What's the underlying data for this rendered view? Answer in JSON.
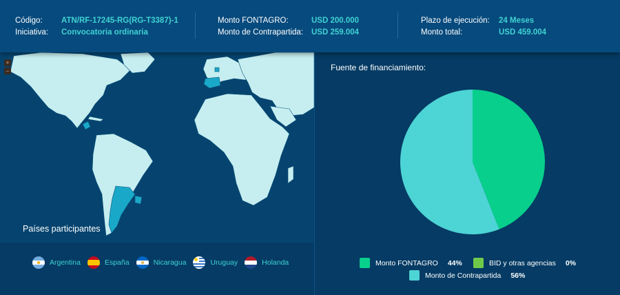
{
  "header": {
    "codigo_label": "Código:",
    "codigo_value": "ATN/RF-17245-RG(RG-T3387)-1",
    "iniciativa_label": "Iniciativa:",
    "iniciativa_value": "Convocatoria ordinaria",
    "monto_fontagro_label": "Monto FONTAGRO:",
    "monto_fontagro_value": "USD 200.000",
    "monto_contrapartida_label": "Monto de Contrapartida:",
    "monto_contrapartida_value": "USD 259.004",
    "plazo_label": "Plazo de ejecución:",
    "plazo_value": "24 Meses",
    "monto_total_label": "Monto total:",
    "monto_total_value": "USD 459.004"
  },
  "map": {
    "zoom_in": "+",
    "zoom_out": "−",
    "title": "Países participantes",
    "countries": [
      {
        "name": "Argentina",
        "flag": "argentina-flag-icon"
      },
      {
        "name": "España",
        "flag": "spain-flag-icon"
      },
      {
        "name": "Nicaragua",
        "flag": "nicaragua-flag-icon"
      },
      {
        "name": "Uruguay",
        "flag": "uruguay-flag-icon"
      },
      {
        "name": "Holanda",
        "flag": "netherlands-flag-icon"
      }
    ],
    "highlight_color": "#1aa8c8",
    "land_color": "#c6eef0",
    "ocean_color": "#06446f"
  },
  "chart_data": {
    "type": "pie",
    "title": "Fuente de financiamiento:",
    "slices": [
      {
        "label": "Monto FONTAGRO",
        "value": 44,
        "display": "44%",
        "color": "#08cf8c"
      },
      {
        "label": "BID y otras agencias",
        "value": 0,
        "display": "0%",
        "color": "#6fca4a"
      },
      {
        "label": "Monto de Contrapartida",
        "value": 56,
        "display": "56%",
        "color": "#4dd4d4"
      }
    ]
  }
}
